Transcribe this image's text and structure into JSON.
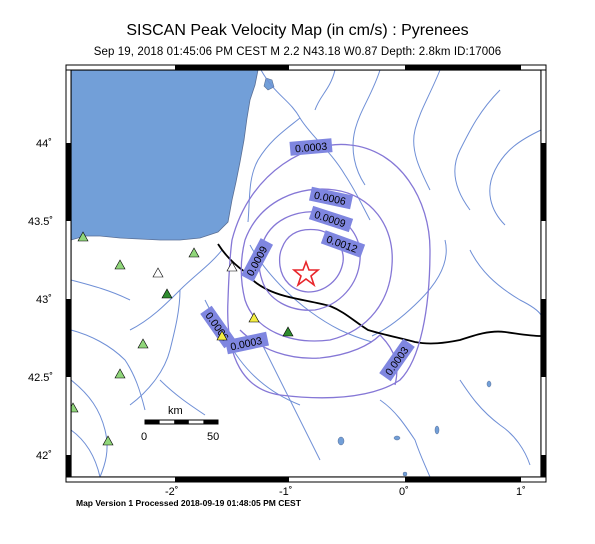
{
  "header": {
    "title": "SISCAN Peak Velocity Map (in cm/s) : Pyrenees",
    "subtitle": "Sep 19, 2018 01:45:06 PM CEST   M 2.2   N43.18 W0.87   Depth: 2.8km   ID:17006"
  },
  "axes": {
    "lat_labels": [
      "44˚",
      "43.5˚",
      "43˚",
      "42.5˚",
      "42˚"
    ],
    "lon_labels": [
      "-2˚",
      "-1˚",
      "0˚",
      "1˚"
    ]
  },
  "contours": [
    {
      "label": "0.0003"
    },
    {
      "label": "0.0006"
    },
    {
      "label": "0.0009"
    },
    {
      "label": "0.0012"
    },
    {
      "label": "0.0009"
    },
    {
      "label": "0.0006"
    },
    {
      "label": "0.0003"
    },
    {
      "label": "0.0003"
    }
  ],
  "scale_bar": {
    "unit": "km",
    "start": "0",
    "end": "50"
  },
  "epicenter": {
    "marker": "star-icon",
    "color": "#e8262b"
  },
  "stations": {
    "marker": "triangle-icon",
    "colors": [
      "#90d67a",
      "#2e8b2e",
      "#f4ee42",
      "#ffffff"
    ]
  },
  "colors": {
    "sea": "#729fd8",
    "rivers": "#6f8fd6",
    "contours": "#8577d6",
    "label_box": "#7f86e0",
    "border": "#000000",
    "epicenter": "#e8262b"
  },
  "footer": {
    "text": "Map Version 1 Processed 2018-09-19 01:48:05 PM CEST"
  }
}
